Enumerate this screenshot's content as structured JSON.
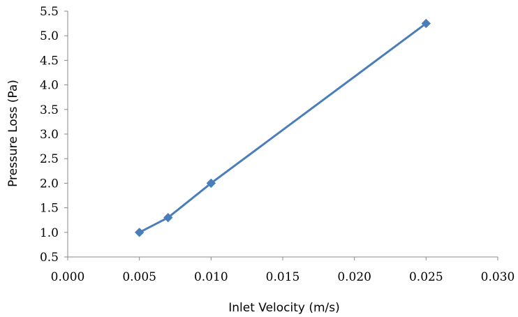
{
  "chart_data": {
    "type": "line",
    "title": "",
    "xlabel": "Inlet Velocity (m/s)",
    "ylabel": "Pressure Loss (Pa)",
    "xlim": [
      0.0,
      0.03
    ],
    "ylim": [
      0.5,
      5.5
    ],
    "x_ticks": [
      "0.000",
      "0.005",
      "0.010",
      "0.015",
      "0.020",
      "0.025",
      "0.030"
    ],
    "y_ticks": [
      "0.5",
      "1.0",
      "1.5",
      "2.0",
      "2.5",
      "3.0",
      "3.5",
      "4.0",
      "4.5",
      "5.0",
      "5.5"
    ],
    "grid": false,
    "legend": "none",
    "series": [
      {
        "color": "#4a7ebb",
        "marker": "diamond",
        "x": [
          0.005,
          0.007,
          0.01,
          0.025
        ],
        "y": [
          1.0,
          1.3,
          2.0,
          5.25
        ]
      }
    ]
  }
}
